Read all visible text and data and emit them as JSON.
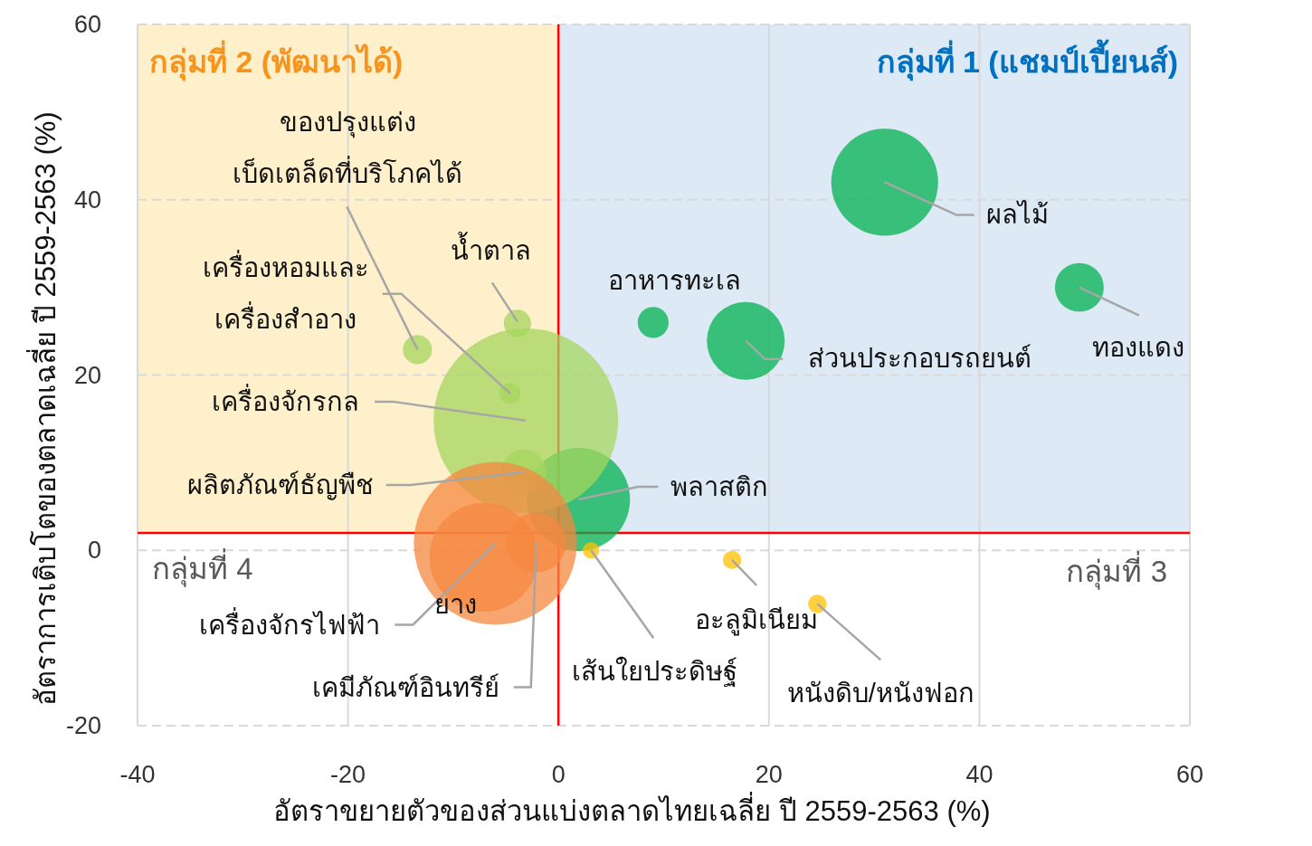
{
  "chart_data": {
    "type": "bubble",
    "xlabel": "อัตราขยายตัวของส่วนแบ่งตลาดไทยเฉลี่ย ปี 2559-2563 (%)",
    "ylabel": "อัตราการเติบโตของตลาดเฉลี่ย ปี 2559-2563 (%)",
    "xlim": [
      -40,
      60
    ],
    "ylim": [
      -20,
      60
    ],
    "xticks": [
      -40,
      -20,
      0,
      20,
      40,
      60
    ],
    "yticks": [
      -20,
      0,
      20,
      40,
      60
    ],
    "grid": true,
    "bands": [
      {
        "axis": "x",
        "from": -40,
        "to": 0,
        "label": "กลุ่มที่ 2 (พัฒนาได้)",
        "color": "#fff0cc"
      },
      {
        "axis": "x",
        "from": 0,
        "to": 60,
        "label": "กลุ่มที่ 1 (แชมป์เปี้ยนส์)",
        "color": "#dde9f5"
      }
    ],
    "ref_lines": [
      {
        "axis": "x",
        "value": 0,
        "color": "#ff0000"
      },
      {
        "axis": "y",
        "value": 2,
        "color": "#ff0000"
      }
    ],
    "series": [
      {
        "color": "#00b050",
        "x": [
          31.0,
          49.5,
          9.0,
          17.8,
          1.9
        ],
        "values": [
          42,
          30,
          26,
          23.9,
          5.8
        ],
        "sizes": [
          0.335,
          0.07,
          0.028,
          0.178,
          0.312
        ]
      },
      {
        "color": "#a6d55f",
        "x": [
          -3.1,
          -3.9,
          -13.4,
          -4.6,
          -3.3
        ],
        "values": [
          14.8,
          25.9,
          22.9,
          17.9,
          8.9
        ],
        "sizes": [
          1,
          0.022,
          0.025,
          0.013,
          0.06
        ]
      },
      {
        "color": "#f58840",
        "x": [
          -6.0,
          -7.1,
          -2.1
        ],
        "values": [
          0.8,
          -0.8,
          0.9
        ],
        "sizes": [
          0.779,
          0.346,
          0.105
        ]
      },
      {
        "color": "#ffc000",
        "x": [
          3.1,
          16.5,
          24.6
        ],
        "values": [
          0,
          -1.1,
          -6.1
        ],
        "sizes": [
          0.008,
          0.01,
          0.01
        ]
      }
    ],
    "annotations": [
      {
        "text": "ผลไม้",
        "x": 31.0,
        "y": 42
      },
      {
        "text": "ทองแดง",
        "x": 49.5,
        "y": 30
      },
      {
        "text": "อาหารทะเล",
        "x": 9.0,
        "y": 26
      },
      {
        "text": "ส่วนประกอบรถยนต์",
        "x": 17.8,
        "y": 23.9
      },
      {
        "text": "พลาสติก",
        "x": 1.9,
        "y": 5.8
      },
      {
        "text": "เครื่องจักรกล",
        "x": -3.1,
        "y": 14.8
      },
      {
        "text": "น้ำตาล",
        "x": -3.9,
        "y": 25.9
      },
      {
        "text": "ของปรุงแต่ง\nเบ็ดเตล็ดที่บริโภคได้",
        "x": -13.4,
        "y": 22.9
      },
      {
        "text": "เครื่องหอมและ\nเครื่องสำอาง",
        "x": -4.6,
        "y": 17.9
      },
      {
        "text": "ผลิตภัณฑ์ธัญพืช",
        "x": -3.3,
        "y": 8.9
      },
      {
        "text": "เครื่องจักรไฟฟ้า",
        "x": -6.0,
        "y": 0.8
      },
      {
        "text": "ยาง",
        "x": -7.1,
        "y": -0.8
      },
      {
        "text": "เคมีภัณฑ์อินทรีย์",
        "x": -2.1,
        "y": 0.9
      },
      {
        "text": "เส้นใยประดิษฐ์",
        "x": 3.1,
        "y": 0
      },
      {
        "text": "อะลูมิเนียม",
        "x": 16.5,
        "y": -1.1
      },
      {
        "text": "หนังดิบ/หนังฟอก",
        "x": 24.6,
        "y": -6.1
      },
      "กลุ่มที่ 4",
      "กลุ่มที่ 3"
    ]
  }
}
